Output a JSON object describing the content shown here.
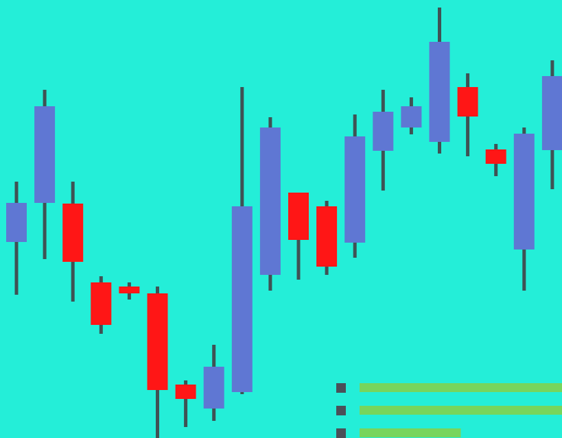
{
  "chart_data": {
    "type": "candlestick",
    "title": "",
    "xlabel": "",
    "ylabel": "",
    "x_tick_labels": [],
    "y_tick_labels": [],
    "grid": false,
    "ylim": [
      0,
      639
    ],
    "candles": [
      {
        "open": 286,
        "high": 374,
        "low": 209,
        "close": 343
      },
      {
        "open": 343,
        "high": 508,
        "low": 261,
        "close": 484
      },
      {
        "open": 342,
        "high": 374,
        "low": 199,
        "close": 257
      },
      {
        "open": 227,
        "high": 236,
        "low": 152,
        "close": 165
      },
      {
        "open": 221,
        "high": 227,
        "low": 202,
        "close": 211
      },
      {
        "open": 211,
        "high": 221,
        "low": 0,
        "close": 70
      },
      {
        "open": 78,
        "high": 84,
        "low": 16,
        "close": 57
      },
      {
        "open": 43,
        "high": 136,
        "low": 25,
        "close": 104
      },
      {
        "open": 67,
        "high": 512,
        "low": 64,
        "close": 338
      },
      {
        "open": 238,
        "high": 468,
        "low": 215,
        "close": 453
      },
      {
        "open": 358,
        "high": 358,
        "low": 231,
        "close": 289
      },
      {
        "open": 338,
        "high": 346,
        "low": 238,
        "close": 250
      },
      {
        "open": 285,
        "high": 472,
        "low": 263,
        "close": 440
      },
      {
        "open": 419,
        "high": 508,
        "low": 361,
        "close": 476
      },
      {
        "open": 453,
        "high": 497,
        "low": 443,
        "close": 484
      },
      {
        "open": 432,
        "high": 628,
        "low": 415,
        "close": 578
      },
      {
        "open": 512,
        "high": 532,
        "low": 411,
        "close": 469
      },
      {
        "open": 421,
        "high": 429,
        "low": 382,
        "close": 400
      },
      {
        "open": 275,
        "high": 453,
        "low": 215,
        "close": 444
      },
      {
        "open": 420,
        "high": 551,
        "low": 363,
        "close": 528
      }
    ],
    "legend": {
      "placement": "bottom-right",
      "entries": [
        {
          "color": "#4A5058",
          "bar_color": "#77D55C",
          "value": 1.0
        },
        {
          "color": "#4A5058",
          "bar_color": "#77D55C",
          "value": 1.0
        },
        {
          "color": "#4A5058",
          "bar_color": "#77D55C",
          "value": 0.5
        }
      ]
    },
    "colors": {
      "background": "#24EED8",
      "up": "#5F77D3",
      "down": "#FF1616",
      "wick": "#3F5254"
    }
  }
}
